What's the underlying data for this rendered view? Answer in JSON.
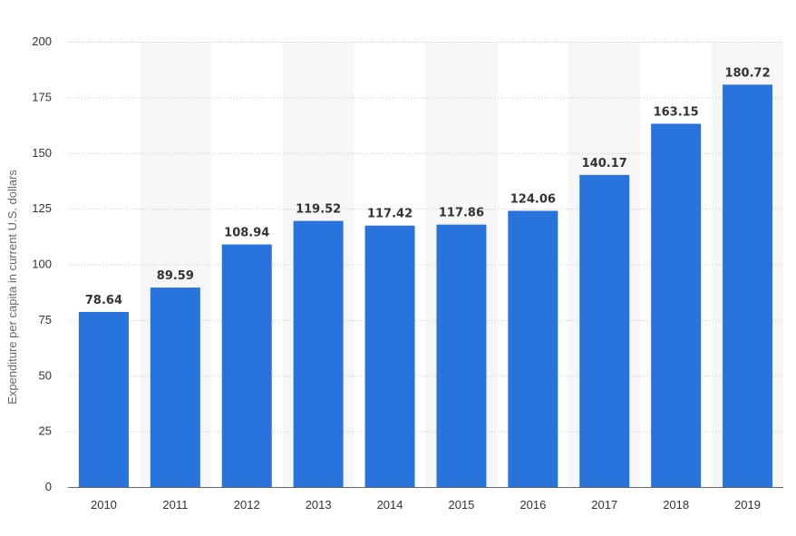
{
  "chart_data": {
    "type": "bar",
    "categories": [
      "2010",
      "2011",
      "2012",
      "2013",
      "2014",
      "2015",
      "2016",
      "2017",
      "2018",
      "2019"
    ],
    "values": [
      78.64,
      89.59,
      108.94,
      119.52,
      117.42,
      117.86,
      124.06,
      140.17,
      163.15,
      180.72
    ],
    "value_labels": [
      "78.64",
      "89.59",
      "108.94",
      "119.52",
      "117.42",
      "117.86",
      "124.06",
      "140.17",
      "163.15",
      "180.72"
    ],
    "ylabel": "Expenditure per capita in current U.S. dollars",
    "xlabel": "",
    "ylim": [
      0,
      200
    ],
    "yticks": [
      0,
      25,
      50,
      75,
      100,
      125,
      150,
      175,
      200
    ],
    "grid": true,
    "legend": "none",
    "colors": {
      "bar": "#2874dc",
      "band": "#f6f6f6",
      "grid": "#c8c8c8",
      "text": "#333333",
      "axis_title": "#666666"
    }
  }
}
